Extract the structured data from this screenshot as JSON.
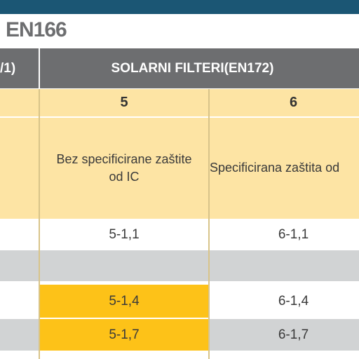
{
  "header": {
    "title": "EN166"
  },
  "table": {
    "left_group": "/1)",
    "group": "SOLARNI FILTERI(EN172)",
    "columns": [
      "5",
      "6"
    ],
    "descriptions": [
      [
        "Bez specificirane zaštite",
        "od IC"
      ],
      [
        "Specificirana zaštita od"
      ]
    ],
    "rows": [
      [
        "5-1,1",
        "6-1,1"
      ],
      [
        "",
        ""
      ],
      [
        "5-1,4",
        "6-1,4"
      ],
      [
        "5-1,7",
        "6-1,7"
      ]
    ]
  }
}
